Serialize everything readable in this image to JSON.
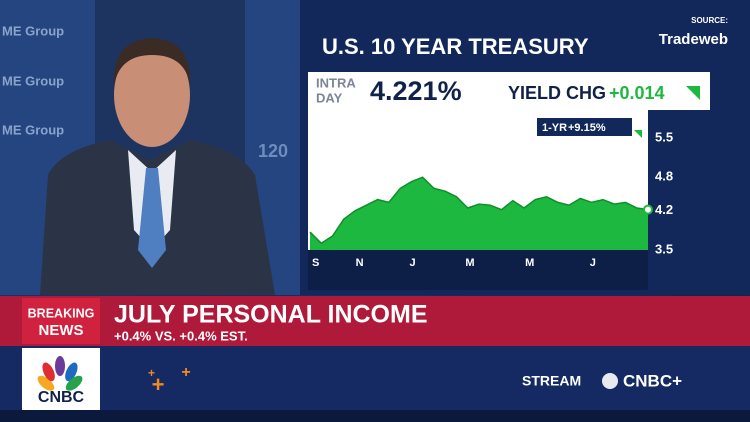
{
  "chart_data": {
    "type": "area",
    "title": "U.S. 10 YEAR TREASURY",
    "color": "#1db83f",
    "x": [
      0,
      1,
      2,
      3,
      4,
      5,
      6,
      7,
      8,
      9,
      10,
      11,
      12,
      13,
      14,
      15,
      16,
      17,
      18,
      19,
      20,
      21,
      22,
      23,
      24,
      25,
      26,
      27,
      28,
      29,
      30
    ],
    "values": [
      3.82,
      3.62,
      3.75,
      4.05,
      4.2,
      4.3,
      4.4,
      4.35,
      4.6,
      4.72,
      4.8,
      4.6,
      4.55,
      4.45,
      4.25,
      4.32,
      4.3,
      4.22,
      4.38,
      4.25,
      4.4,
      4.45,
      4.35,
      4.3,
      4.42,
      4.35,
      4.4,
      4.32,
      4.35,
      4.25,
      4.221
    ],
    "xlim": [
      0,
      30
    ],
    "xticks": [
      {
        "value": 0.5,
        "label": "S"
      },
      {
        "value": 4.4,
        "label": "N"
      },
      {
        "value": 9.1,
        "label": "J"
      },
      {
        "value": 14.2,
        "label": "M"
      },
      {
        "value": 19.5,
        "label": "M"
      },
      {
        "value": 25.1,
        "label": "J"
      }
    ],
    "ylim": [
      3.5,
      6.0
    ],
    "yticks": [
      3.5,
      4.2,
      4.8,
      5.5
    ]
  },
  "source": {
    "label": "SOURCE:",
    "name": "Tradeweb"
  },
  "quote": {
    "intraday": [
      "INTRA",
      "DAY"
    ],
    "price": "4.221%",
    "change_label": "YIELD CHG",
    "change": "+0.014",
    "period": "1-YR",
    "period_change": "+9.15%"
  },
  "ticker": {
    "badge": [
      "BREAKING",
      "NEWS"
    ],
    "headline": "JULY PERSONAL INCOME",
    "subhead": "+0.4% VS. +0.4% EST."
  },
  "footer": {
    "logo": "CNBC",
    "stream": "STREAM",
    "brand": "CNBC+"
  },
  "background": [
    "ME Group",
    "ME Group",
    "ME Group",
    "120"
  ]
}
